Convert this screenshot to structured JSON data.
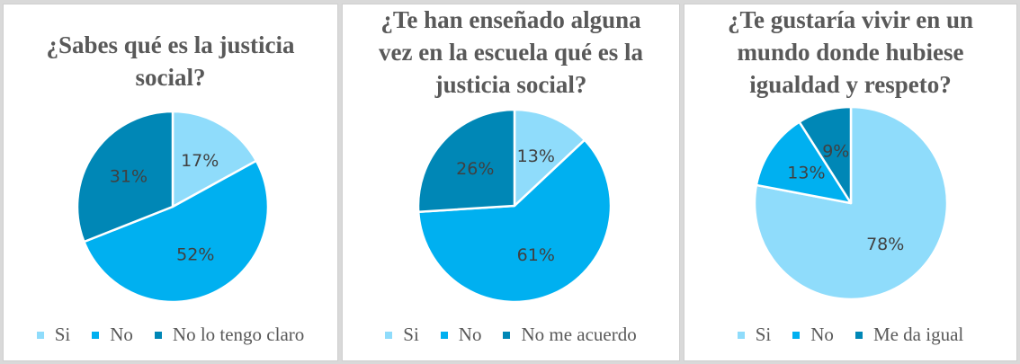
{
  "colors": {
    "si": "#8fdcfb",
    "no": "#00b0f0",
    "third": "#0087b6"
  },
  "chart_data": [
    {
      "type": "pie",
      "title": "¿Sabes qué es la justicia social?",
      "labels": [
        "Si",
        "No",
        "No lo tengo claro"
      ],
      "values": [
        17,
        52,
        31
      ],
      "value_labels": [
        "17%",
        "52%",
        "31%"
      ],
      "colors": [
        "#8fdcfb",
        "#00b0f0",
        "#0087b6"
      ],
      "legend": "bottom"
    },
    {
      "type": "pie",
      "title": "¿Te han enseñado alguna vez en la escuela qué es la justicia social?",
      "labels": [
        "Si",
        "No",
        "No me acuerdo"
      ],
      "values": [
        13,
        61,
        26
      ],
      "value_labels": [
        "13%",
        "61%",
        "26%"
      ],
      "colors": [
        "#8fdcfb",
        "#00b0f0",
        "#0087b6"
      ],
      "legend": "bottom"
    },
    {
      "type": "pie",
      "title": "¿Te gustaría vivir en un mundo donde hubiese igualdad y respeto?",
      "labels": [
        "Si",
        "No",
        "Me da igual"
      ],
      "values": [
        78,
        13,
        9
      ],
      "value_labels": [
        "78%",
        "13%",
        "9%"
      ],
      "colors": [
        "#8fdcfb",
        "#00b0f0",
        "#0087b6"
      ],
      "legend": "bottom"
    }
  ]
}
